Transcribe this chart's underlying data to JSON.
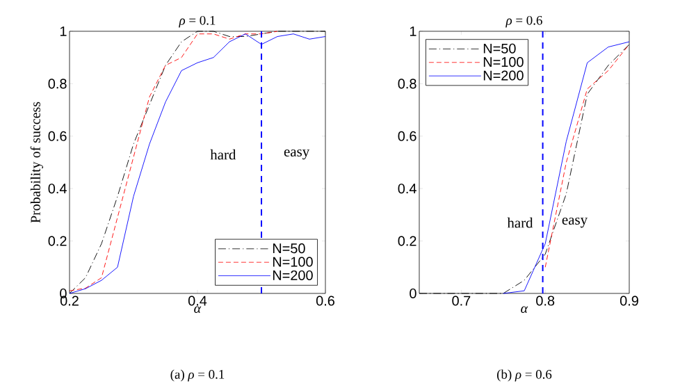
{
  "chart_data": [
    {
      "type": "line",
      "title": "*ρ* = 0.1",
      "xlabel": "*α*",
      "ylabel": "Probability of success",
      "x": [
        0.2,
        0.225,
        0.25,
        0.275,
        0.3,
        0.325,
        0.35,
        0.375,
        0.4,
        0.425,
        0.45,
        0.475,
        0.5,
        0.525,
        0.55,
        0.575,
        0.6
      ],
      "series": [
        {
          "name": "N=50",
          "color": "#000000",
          "line_style": "dashdot",
          "values": [
            0,
            0.06,
            0.19,
            0.37,
            0.57,
            0.72,
            0.87,
            0.96,
            1,
            1,
            0.98,
            0.98,
            0.99,
            1,
            1,
            1,
            1
          ]
        },
        {
          "name": "N=100",
          "color": "#ff0000",
          "line_style": "dashed",
          "values": [
            0.01,
            0.02,
            0.06,
            0.29,
            0.52,
            0.75,
            0.87,
            0.9,
            0.99,
            0.99,
            0.97,
            0.99,
            0.99,
            1,
            null,
            null,
            null
          ]
        },
        {
          "name": "N=200",
          "color": "#0000ff",
          "line_style": "solid",
          "values": [
            0,
            0.018,
            0.05,
            0.1,
            0.37,
            0.57,
            0.73,
            0.85,
            0.88,
            0.9,
            0.96,
            0.99,
            0.95,
            0.98,
            0.99,
            0.97,
            0.98
          ]
        }
      ],
      "xlim": [
        0.2,
        0.6
      ],
      "ylim": [
        0,
        1
      ],
      "xticks": [
        0.2,
        0.4,
        0.6
      ],
      "yticks": [
        0,
        0.2,
        0.4,
        0.6,
        0.8,
        1
      ],
      "ref_lines": [
        {
          "axis": "x",
          "value": 0.5,
          "color": "#0000ff",
          "line_style": "dashed"
        }
      ],
      "annotations": [
        "hard",
        "easy",
        "(a) *ρ* = 0.1"
      ],
      "legend": "bottom right",
      "grid": false
    },
    {
      "type": "line",
      "title": "*ρ* = 0.6",
      "xlabel": "*α*",
      "x": [
        0.65,
        0.675,
        0.7,
        0.725,
        0.75,
        0.775,
        0.8,
        0.825,
        0.85,
        0.875,
        0.9
      ],
      "series": [
        {
          "name": "N=50",
          "color": "#000000",
          "line_style": "dashdot",
          "values": [
            0,
            0,
            0,
            0,
            0,
            0.05,
            0.15,
            0.38,
            0.76,
            0.87,
            0.95
          ]
        },
        {
          "name": "N=100",
          "color": "#ff0000",
          "line_style": "dashed",
          "values": [
            null,
            null,
            null,
            null,
            null,
            null,
            0.1,
            0.5,
            0.78,
            0.85,
            0.95
          ]
        },
        {
          "name": "N=200",
          "color": "#0000ff",
          "line_style": "solid",
          "values": [
            null,
            null,
            null,
            null,
            0,
            0.01,
            0.19,
            0.58,
            0.88,
            0.94,
            0.96
          ]
        }
      ],
      "xlim": [
        0.65,
        0.9
      ],
      "ylim": [
        0,
        1
      ],
      "xticks": [
        0.7,
        0.8,
        0.9
      ],
      "yticks": [
        0,
        0.2,
        0.4,
        0.6,
        0.8,
        1
      ],
      "ref_lines": [
        {
          "axis": "x",
          "value": 0.797,
          "color": "#0000ff",
          "line_style": "dashed"
        }
      ],
      "annotations": [
        "hard",
        "easy",
        "(b) *ρ* = 0.6"
      ],
      "legend": "top left",
      "grid": false
    }
  ]
}
